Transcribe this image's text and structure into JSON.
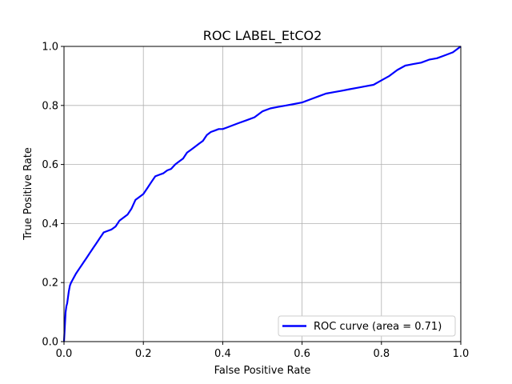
{
  "chart_data": {
    "type": "line",
    "title": "ROC LABEL_EtCO2",
    "xlabel": "False Positive Rate",
    "ylabel": "True Positive Rate",
    "xlim": [
      0.0,
      1.0
    ],
    "ylim": [
      0.0,
      1.0
    ],
    "grid": true,
    "x_ticks": [
      0.0,
      0.2,
      0.4,
      0.6,
      0.8,
      1.0
    ],
    "y_ticks": [
      0.0,
      0.2,
      0.4,
      0.6,
      0.8,
      1.0
    ],
    "x_tick_labels": [
      "0.0",
      "0.2",
      "0.4",
      "0.6",
      "0.8",
      "1.0"
    ],
    "y_tick_labels": [
      "0.0",
      "0.2",
      "0.4",
      "0.6",
      "0.8",
      "1.0"
    ],
    "legend": {
      "position": "lower-right",
      "entries": [
        "ROC curve (area = 0.71)"
      ]
    },
    "colors": {
      "series": "#0000ff",
      "grid": "#b0b0b0",
      "axes": "#000000"
    },
    "series": [
      {
        "name": "ROC curve (area = 0.71)",
        "x": [
          0.0,
          0.002,
          0.004,
          0.006,
          0.008,
          0.01,
          0.012,
          0.015,
          0.018,
          0.022,
          0.026,
          0.03,
          0.035,
          0.04,
          0.045,
          0.05,
          0.055,
          0.06,
          0.065,
          0.07,
          0.075,
          0.08,
          0.085,
          0.09,
          0.095,
          0.1,
          0.11,
          0.12,
          0.13,
          0.14,
          0.15,
          0.16,
          0.17,
          0.18,
          0.19,
          0.2,
          0.21,
          0.22,
          0.23,
          0.24,
          0.25,
          0.26,
          0.27,
          0.28,
          0.29,
          0.3,
          0.31,
          0.32,
          0.33,
          0.34,
          0.35,
          0.36,
          0.37,
          0.38,
          0.39,
          0.4,
          0.41,
          0.42,
          0.44,
          0.46,
          0.48,
          0.5,
          0.52,
          0.54,
          0.56,
          0.58,
          0.6,
          0.62,
          0.64,
          0.66,
          0.68,
          0.7,
          0.72,
          0.74,
          0.76,
          0.78,
          0.8,
          0.82,
          0.84,
          0.86,
          0.88,
          0.9,
          0.92,
          0.94,
          0.96,
          0.98,
          1.0
        ],
        "y": [
          0.0,
          0.05,
          0.1,
          0.12,
          0.13,
          0.15,
          0.17,
          0.19,
          0.2,
          0.21,
          0.22,
          0.23,
          0.24,
          0.25,
          0.26,
          0.27,
          0.28,
          0.29,
          0.3,
          0.31,
          0.32,
          0.33,
          0.34,
          0.35,
          0.36,
          0.37,
          0.375,
          0.38,
          0.39,
          0.41,
          0.42,
          0.43,
          0.45,
          0.48,
          0.49,
          0.5,
          0.52,
          0.54,
          0.56,
          0.565,
          0.57,
          0.58,
          0.585,
          0.6,
          0.61,
          0.62,
          0.64,
          0.65,
          0.66,
          0.67,
          0.68,
          0.7,
          0.71,
          0.715,
          0.72,
          0.72,
          0.725,
          0.73,
          0.74,
          0.75,
          0.76,
          0.78,
          0.79,
          0.795,
          0.8,
          0.805,
          0.81,
          0.82,
          0.83,
          0.84,
          0.845,
          0.85,
          0.855,
          0.86,
          0.865,
          0.87,
          0.885,
          0.9,
          0.92,
          0.935,
          0.94,
          0.945,
          0.955,
          0.96,
          0.97,
          0.98,
          1.0
        ]
      }
    ]
  }
}
